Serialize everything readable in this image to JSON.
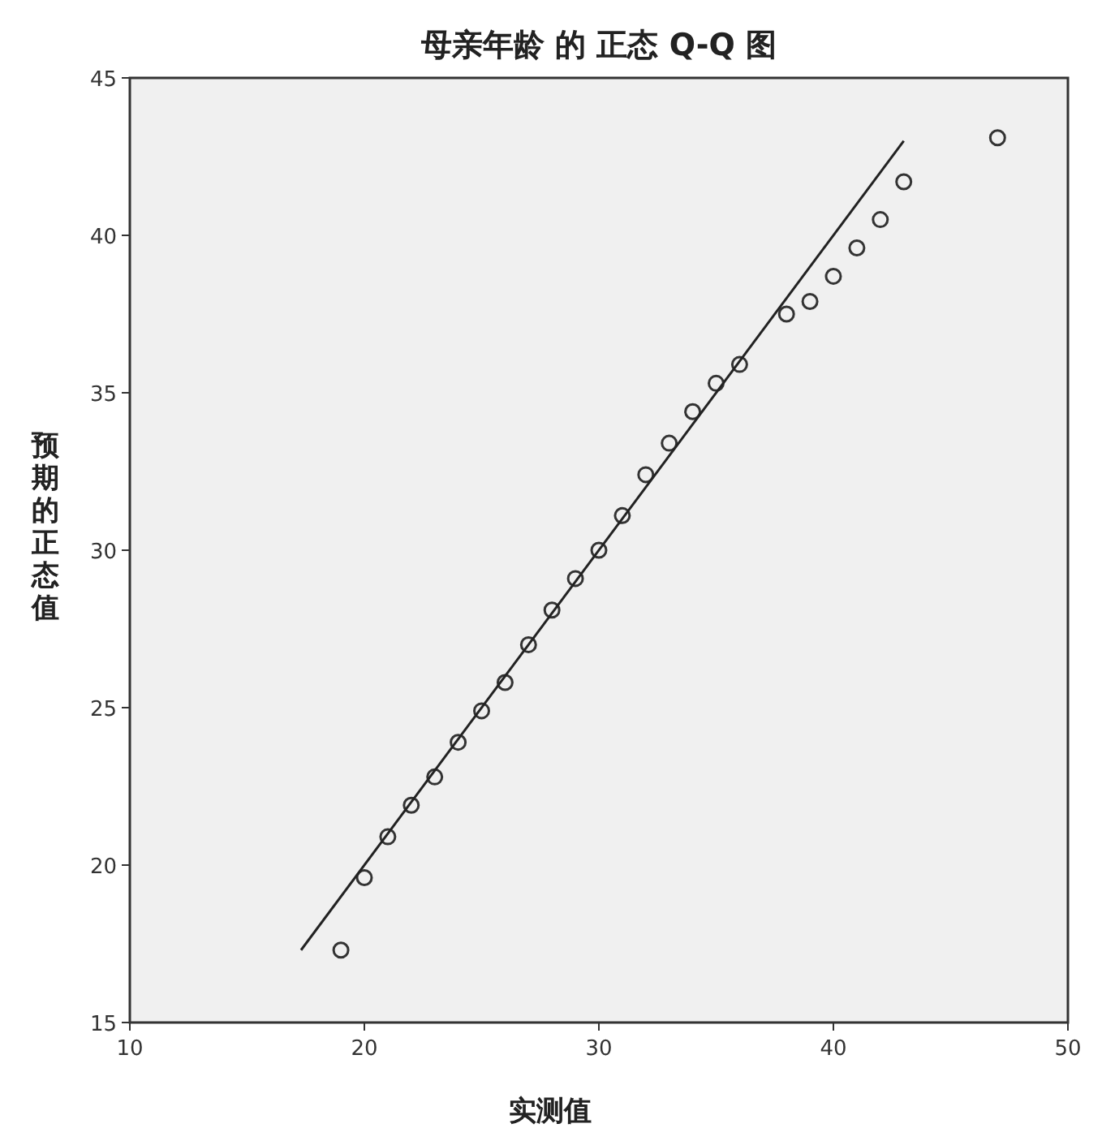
{
  "chart_data": {
    "type": "scatter",
    "title": "母亲年龄 的 正态 Q-Q 图",
    "xlabel": "实测值",
    "ylabel": "预期的正态值",
    "xlim": [
      10,
      50
    ],
    "ylim": [
      15,
      45
    ],
    "xticks": [
      10,
      20,
      30,
      40,
      50
    ],
    "yticks": [
      15,
      20,
      25,
      30,
      35,
      40,
      45
    ],
    "marker": "circle",
    "series": [
      {
        "type": "scatter",
        "color": "#333333",
        "x": [
          19,
          20,
          21,
          22,
          23,
          24,
          25,
          26,
          27,
          28,
          29,
          30,
          31,
          32,
          33,
          34,
          35,
          36,
          38,
          39,
          40,
          41,
          42,
          43,
          47
        ],
        "values": [
          17.3,
          19.6,
          20.9,
          21.9,
          22.8,
          23.9,
          24.9,
          25.8,
          27.0,
          28.1,
          29.1,
          30.0,
          31.1,
          32.4,
          33.4,
          34.4,
          35.3,
          35.9,
          37.5,
          37.9,
          38.7,
          39.6,
          40.5,
          41.7,
          43.1
        ]
      },
      {
        "type": "line",
        "marker": "none",
        "color": "#222222",
        "x": [
          17.3,
          43
        ],
        "values": [
          17.3,
          43
        ]
      }
    ]
  }
}
